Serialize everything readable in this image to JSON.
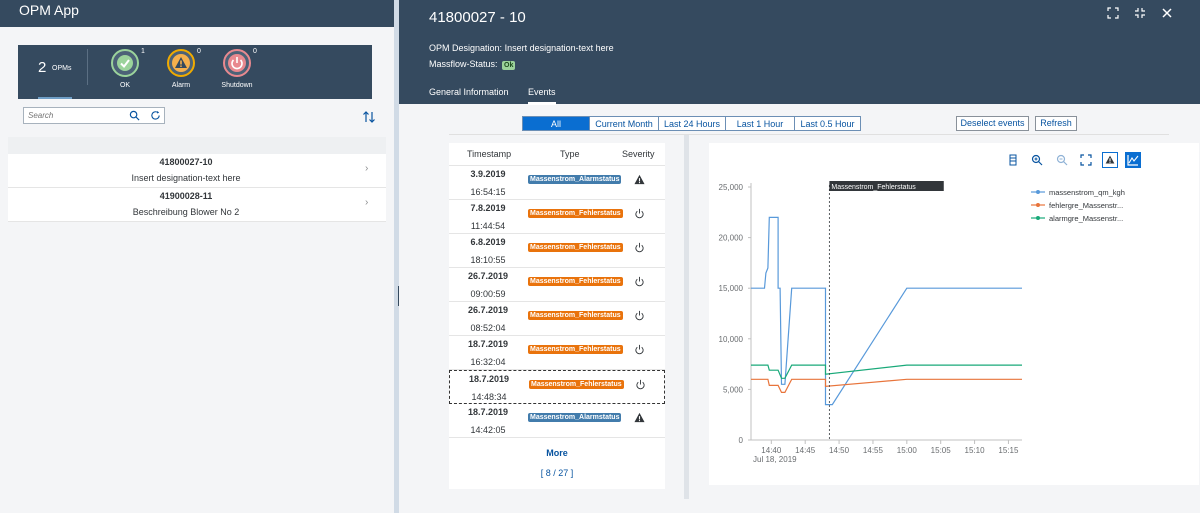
{
  "app": {
    "title": "OPM App"
  },
  "kpis": {
    "opms_count": "2",
    "opms_label": "OPMs",
    "ok": {
      "label": "OK",
      "count": "1",
      "color": "#9bd39b"
    },
    "alarm": {
      "label": "Alarm",
      "count": "0",
      "color": "#f0ab00"
    },
    "shutdown": {
      "label": "Shutdown",
      "count": "0",
      "color": "#e8898f"
    }
  },
  "search": {
    "placeholder": "Search"
  },
  "opm_list": [
    {
      "id": "41800027-10",
      "description": "Insert designation-text here"
    },
    {
      "id": "41900028-11",
      "description": "Beschreibung Blower No 2"
    }
  ],
  "detail": {
    "title": "41800027 - 10",
    "designation_label": "OPM Designation:",
    "designation_value": "Insert designation-text here",
    "massflow_label": "Massflow-Status:",
    "massflow_value": "Ok",
    "tabs": [
      "General Information",
      "Events"
    ],
    "active_tab": "Events"
  },
  "filters": {
    "options": [
      "All",
      "Current Month",
      "Last 24 Hours",
      "Last 1 Hour",
      "Last 0.5 Hour"
    ],
    "selected": "All",
    "deselect_label": "Deselect events",
    "refresh_label": "Refresh"
  },
  "events_table": {
    "columns": [
      "Timestamp",
      "Type",
      "Severity"
    ],
    "rows": [
      {
        "date": "3.9.2019",
        "time": "16:54:15",
        "type": "Massenstrom_Alarmstatus",
        "severity": "warning"
      },
      {
        "date": "7.8.2019",
        "time": "11:44:54",
        "type": "Massenstrom_Fehlerstatus",
        "severity": "power"
      },
      {
        "date": "6.8.2019",
        "time": "18:10:55",
        "type": "Massenstrom_Fehlerstatus",
        "severity": "power"
      },
      {
        "date": "26.7.2019",
        "time": "09:00:59",
        "type": "Massenstrom_Fehlerstatus",
        "severity": "power"
      },
      {
        "date": "26.7.2019",
        "time": "08:52:04",
        "type": "Massenstrom_Fehlerstatus",
        "severity": "power"
      },
      {
        "date": "18.7.2019",
        "time": "16:32:04",
        "type": "Massenstrom_Fehlerstatus",
        "severity": "power"
      },
      {
        "date": "18.7.2019",
        "time": "14:48:34",
        "type": "Massenstrom_Fehlerstatus",
        "severity": "power",
        "selected": true
      },
      {
        "date": "18.7.2019",
        "time": "14:42:05",
        "type": "Massenstrom_Alarmstatus",
        "severity": "warning"
      }
    ],
    "more_label": "More",
    "more_count": "[ 8 / 27 ]"
  },
  "chart_data": {
    "type": "line",
    "x_ticks": [
      "14:40",
      "14:45",
      "14:50",
      "14:55",
      "15:00",
      "15:05",
      "15:10",
      "15:15"
    ],
    "x_sub_label": "Jul 18, 2019",
    "y_ticks": [
      "0",
      "5,000",
      "10,000",
      "15,000",
      "20,000",
      "25,000"
    ],
    "ylim": [
      0,
      25000
    ],
    "xlim": [
      "14:37",
      "15:17"
    ],
    "marker": {
      "label": "Massenstrom_Fehlerstatus",
      "x": "14:48:34"
    },
    "legend_position": "right",
    "series": [
      {
        "name": "massenstrom_qm_kgh",
        "color": "#5899da",
        "points": [
          [
            "14:37",
            15000
          ],
          [
            "14:39",
            15000
          ],
          [
            "14:39.2",
            16500
          ],
          [
            "14:39.5",
            17000
          ],
          [
            "14:39.7",
            22000
          ],
          [
            "14:41",
            22000
          ],
          [
            "14:41",
            15000
          ],
          [
            "14:41.3",
            15000
          ],
          [
            "14:41.5",
            5500
          ],
          [
            "14:42",
            5500
          ],
          [
            "14:43",
            15000
          ],
          [
            "14:48",
            15000
          ],
          [
            "14:48",
            3500
          ],
          [
            "14:49",
            3500
          ],
          [
            "15:00",
            15000
          ],
          [
            "15:17",
            15000
          ]
        ]
      },
      {
        "name": "fehlergre_Massenstr...",
        "color": "#e8743b",
        "points": [
          [
            "14:37",
            6000
          ],
          [
            "14:39.5",
            6000
          ],
          [
            "14:39.7",
            5400
          ],
          [
            "14:41",
            5400
          ],
          [
            "14:41.5",
            4700
          ],
          [
            "14:42",
            4700
          ],
          [
            "14:43",
            6000
          ],
          [
            "14:48",
            6000
          ],
          [
            "14:48",
            5300
          ],
          [
            "15:00",
            6000
          ],
          [
            "15:17",
            6000
          ]
        ]
      },
      {
        "name": "alarmgre_Massenstr...",
        "color": "#19a979",
        "points": [
          [
            "14:37",
            7400
          ],
          [
            "14:39.5",
            7400
          ],
          [
            "14:39.7",
            6900
          ],
          [
            "14:41",
            6900
          ],
          [
            "14:41.5",
            6100
          ],
          [
            "14:42",
            6100
          ],
          [
            "14:43",
            7400
          ],
          [
            "14:48",
            7400
          ],
          [
            "14:48",
            6500
          ],
          [
            "15:00",
            7400
          ],
          [
            "15:17",
            7400
          ]
        ]
      }
    ]
  }
}
